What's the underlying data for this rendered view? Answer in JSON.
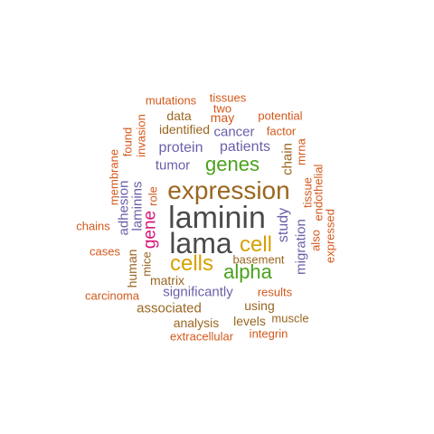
{
  "colors": {
    "gray": "#4a4a4a",
    "brown": "#9a6620",
    "yellow": "#d6a100",
    "green": "#4aa21c",
    "purple": "#6a5fa8",
    "pink": "#d8157a",
    "orange": "#d4581a"
  },
  "words": [
    {
      "id": "laminin",
      "text": "laminin",
      "color": "gray"
    },
    {
      "id": "lama",
      "text": "lama",
      "color": "gray"
    },
    {
      "id": "expression",
      "text": "expression",
      "color": "brown"
    },
    {
      "id": "cells",
      "text": "cells",
      "color": "yellow"
    },
    {
      "id": "cell",
      "text": "cell",
      "color": "yellow"
    },
    {
      "id": "alpha",
      "text": "alpha",
      "color": "green"
    },
    {
      "id": "genes",
      "text": "genes",
      "color": "green"
    },
    {
      "id": "gene",
      "text": "gene",
      "color": "pink"
    },
    {
      "id": "protein",
      "text": "protein",
      "color": "purple"
    },
    {
      "id": "patients",
      "text": "patients",
      "color": "purple"
    },
    {
      "id": "tumor",
      "text": "tumor",
      "color": "purple"
    },
    {
      "id": "cancer",
      "text": "cancer",
      "color": "purple"
    },
    {
      "id": "significantly",
      "text": "significantly",
      "color": "purple"
    },
    {
      "id": "study",
      "text": "study",
      "color": "purple"
    },
    {
      "id": "migration",
      "text": "migration",
      "color": "purple"
    },
    {
      "id": "adhesion",
      "text": "adhesion",
      "color": "purple"
    },
    {
      "id": "laminins",
      "text": "laminins",
      "color": "purple"
    },
    {
      "id": "chain",
      "text": "chain",
      "color": "brown"
    },
    {
      "id": "associated",
      "text": "associated",
      "color": "brown"
    },
    {
      "id": "analysis",
      "text": "analysis",
      "color": "brown"
    },
    {
      "id": "levels",
      "text": "levels",
      "color": "brown"
    },
    {
      "id": "human",
      "text": "human",
      "color": "brown"
    },
    {
      "id": "mice",
      "text": "mice",
      "color": "brown"
    },
    {
      "id": "matrix",
      "text": "matrix",
      "color": "brown"
    },
    {
      "id": "basement",
      "text": "basement",
      "color": "brown"
    },
    {
      "id": "using",
      "text": "using",
      "color": "brown"
    },
    {
      "id": "identified",
      "text": "identified",
      "color": "brown"
    },
    {
      "id": "data",
      "text": "data",
      "color": "brown"
    },
    {
      "id": "muscle",
      "text": "muscle",
      "color": "brown"
    },
    {
      "id": "mutations",
      "text": "mutations",
      "color": "orange"
    },
    {
      "id": "tissues",
      "text": "tissues",
      "color": "orange"
    },
    {
      "id": "two",
      "text": "two",
      "color": "orange"
    },
    {
      "id": "may",
      "text": "may",
      "color": "orange"
    },
    {
      "id": "potential",
      "text": "potential",
      "color": "orange"
    },
    {
      "id": "factor",
      "text": "factor",
      "color": "orange"
    },
    {
      "id": "invasion",
      "text": "invasion",
      "color": "orange"
    },
    {
      "id": "found",
      "text": "found",
      "color": "orange"
    },
    {
      "id": "membrane",
      "text": "membrane",
      "color": "orange"
    },
    {
      "id": "mrna",
      "text": "mrna",
      "color": "orange"
    },
    {
      "id": "role",
      "text": "role",
      "color": "orange"
    },
    {
      "id": "tissue",
      "text": "tissue",
      "color": "orange"
    },
    {
      "id": "endothelial",
      "text": "endothelial",
      "color": "orange"
    },
    {
      "id": "also",
      "text": "also",
      "color": "orange"
    },
    {
      "id": "expressed",
      "text": "expressed",
      "color": "orange"
    },
    {
      "id": "chains",
      "text": "chains",
      "color": "orange"
    },
    {
      "id": "cases",
      "text": "cases",
      "color": "orange"
    },
    {
      "id": "carcinoma",
      "text": "carcinoma",
      "color": "orange"
    },
    {
      "id": "results",
      "text": "results",
      "color": "orange"
    },
    {
      "id": "extracellular",
      "text": "extracellular",
      "color": "orange"
    },
    {
      "id": "integrin",
      "text": "integrin",
      "color": "orange"
    }
  ]
}
